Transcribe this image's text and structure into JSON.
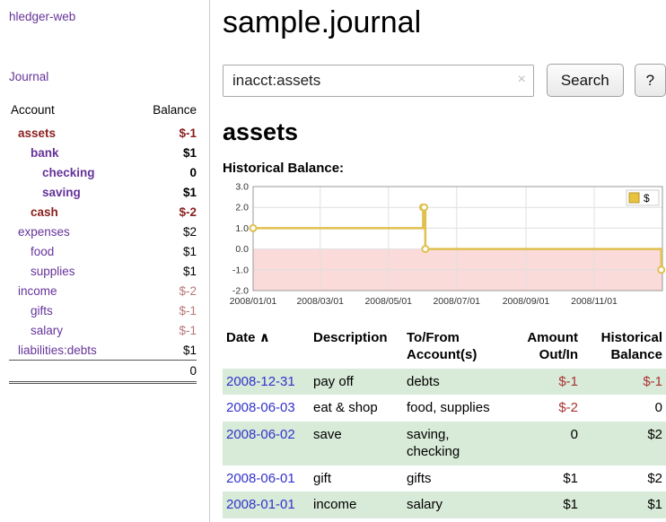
{
  "colors": {
    "link_purple": "#663399",
    "date_link_blue": "#3333cc",
    "negative_red": "#aa3333",
    "negative_dark_red": "#8b1f1f",
    "negative_soft_red": "#b97777",
    "row_stripe_green": "#d8ead8",
    "chart_line_gold": "#e0c050",
    "chart_negative_region_pink": "#fbdada"
  },
  "sidebar": {
    "app_title": "hledger-web",
    "journal_link": "Journal",
    "table": {
      "account_header": "Account",
      "balance_header": "Balance",
      "rows": [
        {
          "name": "assets",
          "balance": "$-1",
          "indent": 1,
          "bold": true,
          "neg": true,
          "neg_name": true
        },
        {
          "name": "bank",
          "balance": "$1",
          "indent": 2,
          "bold": true
        },
        {
          "name": "checking",
          "balance": "0",
          "indent": 3,
          "bold": true
        },
        {
          "name": "saving",
          "balance": "$1",
          "indent": 3,
          "bold": true
        },
        {
          "name": "cash",
          "balance": "$-2",
          "indent": 2,
          "bold": true,
          "neg": true,
          "neg_name": true
        },
        {
          "name": "expenses",
          "balance": "$2",
          "indent": 1
        },
        {
          "name": "food",
          "balance": "$1",
          "indent": 2
        },
        {
          "name": "supplies",
          "balance": "$1",
          "indent": 2
        },
        {
          "name": "income",
          "balance": "$-2",
          "indent": 1,
          "soft": true
        },
        {
          "name": "gifts",
          "balance": "$-1",
          "indent": 2,
          "soft": true
        },
        {
          "name": "salary",
          "balance": "$-1",
          "indent": 2,
          "soft": true
        },
        {
          "name": "liabilities:debts",
          "balance": "$1",
          "indent": 1
        }
      ],
      "total": "0"
    }
  },
  "main": {
    "page_title": "sample.journal",
    "search": {
      "value": "inacct:assets",
      "clear_icon": "×",
      "search_button": "Search",
      "help_button": "?"
    },
    "account_heading": "assets",
    "chart_heading": "Historical Balance:"
  },
  "chart_data": {
    "type": "line",
    "step": true,
    "title": "Historical Balance",
    "legend": {
      "label": "$",
      "position": "top-right",
      "swatch_color": "#e8c33c"
    },
    "series": [
      {
        "name": "$",
        "x": [
          "2008-01-01",
          "2008-06-01",
          "2008-06-02",
          "2008-06-03",
          "2008-12-31"
        ],
        "y": [
          1,
          2,
          2,
          0,
          -1
        ]
      }
    ],
    "xrange": [
      "2008-01-01",
      "2009-01-01"
    ],
    "xtick_values": [
      "2008-01-01",
      "2008-03-01",
      "2008-05-01",
      "2008-07-01",
      "2008-09-01",
      "2008-11-01"
    ],
    "xtick_labels": [
      "2008/01/01",
      "2008/03/01",
      "2008/05/01",
      "2008/07/01",
      "2008/09/01",
      "2008/11/01"
    ],
    "ylim": [
      -2,
      3
    ],
    "yticks": [
      3,
      2,
      1,
      0,
      -1,
      -2
    ],
    "ytick_labels": [
      "3.0",
      "2.0",
      "1.0",
      "0.0",
      "-1.0",
      "-2.0"
    ],
    "grid": true,
    "line_color": "#e0c050",
    "negative_region_fill": "#fbdada"
  },
  "register": {
    "headers": {
      "date": "Date",
      "sort_indicator": "∧",
      "description": "Description",
      "accounts": "To/From Account(s)",
      "amount": "Amount Out/In",
      "balance": "Historical Balance"
    },
    "rows": [
      {
        "date": "2008-12-31",
        "description": "pay off",
        "accounts": "debts",
        "amount": "$-1",
        "amount_neg": true,
        "balance": "$-1",
        "balance_neg": true
      },
      {
        "date": "2008-06-03",
        "description": "eat & shop",
        "accounts": "food, supplies",
        "amount": "$-2",
        "amount_neg": true,
        "balance": "0"
      },
      {
        "date": "2008-06-02",
        "description": "save",
        "accounts": "saving, checking",
        "amount": "0",
        "balance": "$2"
      },
      {
        "date": "2008-06-01",
        "description": "gift",
        "accounts": "gifts",
        "amount": "$1",
        "balance": "$2"
      },
      {
        "date": "2008-01-01",
        "description": "income",
        "accounts": "salary",
        "amount": "$1",
        "balance": "$1"
      }
    ]
  }
}
